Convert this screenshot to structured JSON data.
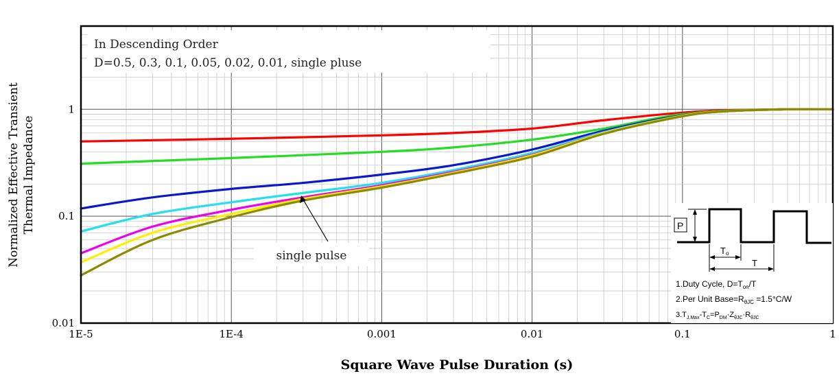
{
  "chart_data": {
    "type": "line",
    "title": "",
    "xlabel": "Square Wave Pulse Duration (s)",
    "ylabel_line1": "Normalized Effective Transient",
    "ylabel_line2": "Thermal Impedance",
    "x_scale": "log",
    "y_scale": "log",
    "xlim": [
      1e-05,
      1
    ],
    "ylim": [
      0.01,
      6
    ],
    "grid": true,
    "x_ticks": [
      {
        "value": 1e-05,
        "label": "1E-5"
      },
      {
        "value": 0.0001,
        "label": "1E-4"
      },
      {
        "value": 0.001,
        "label": "0.001"
      },
      {
        "value": 0.01,
        "label": "0.01"
      },
      {
        "value": 0.1,
        "label": "0.1"
      },
      {
        "value": 1,
        "label": "1"
      }
    ],
    "y_ticks": [
      {
        "value": 0.01,
        "label": "0.01"
      },
      {
        "value": 0.1,
        "label": "0.1"
      },
      {
        "value": 1,
        "label": "1"
      }
    ],
    "legend_line1": "In Descending Order",
    "legend_line2": "D=0.5, 0.3, 0.1, 0.05, 0.02, 0.01, single pluse",
    "annotation_label": "single pulse",
    "series": [
      {
        "name": "D=0.5",
        "color": "#ff0000",
        "x": [
          1e-05,
          0.0001,
          0.001,
          0.003,
          0.01,
          0.03,
          0.1,
          0.2,
          0.5,
          1
        ],
        "y": [
          0.5,
          0.53,
          0.57,
          0.6,
          0.66,
          0.79,
          0.93,
          0.98,
          1.0,
          1.0
        ]
      },
      {
        "name": "D=0.3",
        "color": "#22dd22",
        "x": [
          1e-05,
          0.0001,
          0.001,
          0.003,
          0.01,
          0.03,
          0.06,
          0.1,
          0.2,
          0.5,
          1
        ],
        "y": [
          0.31,
          0.35,
          0.4,
          0.44,
          0.52,
          0.66,
          0.8,
          0.9,
          0.97,
          1.0,
          1.0
        ]
      },
      {
        "name": "D=0.1",
        "color": "#0a18cc",
        "x": [
          1e-05,
          3e-05,
          0.0001,
          0.0003,
          0.001,
          0.003,
          0.01,
          0.03,
          0.1,
          0.2,
          0.5,
          1
        ],
        "y": [
          0.118,
          0.15,
          0.18,
          0.205,
          0.245,
          0.3,
          0.42,
          0.63,
          0.88,
          0.96,
          1.0,
          1.0
        ]
      },
      {
        "name": "D=0.05",
        "color": "#22e0ee",
        "x": [
          1e-05,
          3e-05,
          0.0001,
          0.0003,
          0.001,
          0.003,
          0.01,
          0.03,
          0.1,
          0.2,
          0.5,
          1
        ],
        "y": [
          0.072,
          0.105,
          0.135,
          0.165,
          0.205,
          0.27,
          0.39,
          0.61,
          0.87,
          0.96,
          1.0,
          1.0
        ]
      },
      {
        "name": "D=0.02",
        "color": "#ee00ee",
        "x": [
          1e-05,
          3e-05,
          0.0001,
          0.0003,
          0.001,
          0.003,
          0.01,
          0.03,
          0.1,
          0.2,
          0.5,
          1
        ],
        "y": [
          0.045,
          0.08,
          0.115,
          0.15,
          0.195,
          0.26,
          0.375,
          0.6,
          0.87,
          0.96,
          1.0,
          1.0
        ]
      },
      {
        "name": "D=0.01",
        "color": "#ffee00",
        "x": [
          1e-05,
          3e-05,
          0.0001,
          0.0003,
          0.001,
          0.003,
          0.01,
          0.03,
          0.1,
          0.2,
          0.5,
          1
        ],
        "y": [
          0.037,
          0.07,
          0.105,
          0.145,
          0.19,
          0.255,
          0.37,
          0.6,
          0.87,
          0.96,
          1.0,
          1.0
        ]
      },
      {
        "name": "single pulse",
        "color": "#8b8b00",
        "x": [
          1e-05,
          3e-05,
          0.0001,
          0.0003,
          0.001,
          0.003,
          0.01,
          0.03,
          0.1,
          0.2,
          0.5,
          1
        ],
        "y": [
          0.028,
          0.06,
          0.098,
          0.14,
          0.185,
          0.25,
          0.36,
          0.59,
          0.86,
          0.96,
          1.0,
          1.0
        ]
      }
    ],
    "inset": {
      "p_label": "P",
      "ton_label": "T",
      "ton_sub": "o",
      "t_label": "T",
      "note1_pre": "1.Duty Cycle, D=T",
      "note1_sub": "on",
      "note1_post": "/T",
      "note2_pre": "2.Per Unit Base=R",
      "note2_sub": "θJC",
      "note2_post": " =1.5°C/W",
      "note3_a": "3.T",
      "note3_a_sub": "J.Max",
      "note3_b": "-T",
      "note3_b_sub": "C",
      "note3_c": "=P",
      "note3_c_sub": "DM",
      "note3_d": "·Z",
      "note3_d_sub": "θJC",
      "note3_e": "·R",
      "note3_e_sub": "θJC"
    }
  }
}
